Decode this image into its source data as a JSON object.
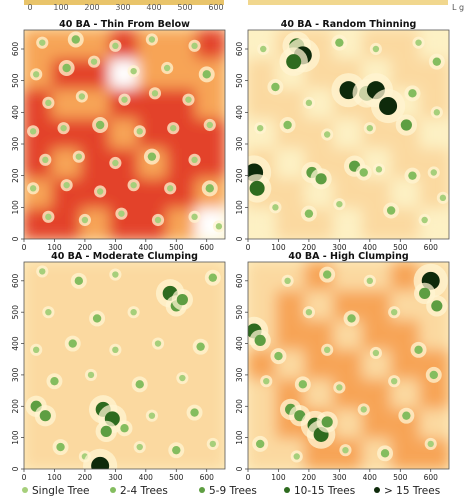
{
  "chart_data": [
    {
      "type": "heatmap",
      "title": "40 BA - Thin From Below",
      "xlim": [
        0,
        660
      ],
      "ylim": [
        0,
        660
      ],
      "x_ticks": [
        0,
        100,
        200,
        300,
        400,
        500,
        600
      ],
      "y_ticks": [
        0,
        100,
        200,
        300,
        400,
        500,
        600
      ],
      "color_scale": [
        "#fdf1c4",
        "#fbd9a0",
        "#f7a457",
        "#e3432a",
        "#ffffff"
      ],
      "crown_density": [
        [
          0.45,
          0.6,
          0.6,
          0.7,
          0.55,
          0.55,
          0.7
        ],
        [
          0.55,
          0.65,
          0.7,
          0.9,
          0.6,
          0.6,
          0.55
        ],
        [
          0.7,
          0.6,
          0.6,
          0.75,
          0.65,
          0.7,
          0.6
        ],
        [
          0.65,
          0.7,
          0.65,
          0.6,
          0.7,
          0.8,
          0.65
        ],
        [
          0.75,
          0.6,
          0.7,
          0.65,
          0.6,
          0.65,
          0.7
        ],
        [
          0.6,
          0.7,
          0.65,
          0.7,
          0.65,
          0.7,
          0.6
        ],
        [
          0.7,
          0.65,
          0.6,
          0.7,
          0.75,
          0.6,
          0.9
        ]
      ],
      "points": [
        {
          "x": 60,
          "y": 620,
          "cls": 1
        },
        {
          "x": 170,
          "y": 630,
          "cls": 2
        },
        {
          "x": 300,
          "y": 610,
          "cls": 1
        },
        {
          "x": 420,
          "y": 630,
          "cls": 1
        },
        {
          "x": 560,
          "y": 610,
          "cls": 1
        },
        {
          "x": 40,
          "y": 520,
          "cls": 1
        },
        {
          "x": 140,
          "y": 540,
          "cls": 2
        },
        {
          "x": 230,
          "y": 560,
          "cls": 1
        },
        {
          "x": 360,
          "y": 530,
          "cls": 1
        },
        {
          "x": 470,
          "y": 540,
          "cls": 1
        },
        {
          "x": 600,
          "y": 520,
          "cls": 2
        },
        {
          "x": 80,
          "y": 430,
          "cls": 1
        },
        {
          "x": 190,
          "y": 450,
          "cls": 1
        },
        {
          "x": 330,
          "y": 440,
          "cls": 1
        },
        {
          "x": 430,
          "y": 460,
          "cls": 1
        },
        {
          "x": 540,
          "y": 440,
          "cls": 1
        },
        {
          "x": 30,
          "y": 340,
          "cls": 1
        },
        {
          "x": 130,
          "y": 350,
          "cls": 1
        },
        {
          "x": 250,
          "y": 360,
          "cls": 2
        },
        {
          "x": 380,
          "y": 340,
          "cls": 1
        },
        {
          "x": 490,
          "y": 350,
          "cls": 1
        },
        {
          "x": 610,
          "y": 360,
          "cls": 1
        },
        {
          "x": 70,
          "y": 250,
          "cls": 1
        },
        {
          "x": 180,
          "y": 260,
          "cls": 1
        },
        {
          "x": 300,
          "y": 240,
          "cls": 1
        },
        {
          "x": 420,
          "y": 260,
          "cls": 2
        },
        {
          "x": 560,
          "y": 250,
          "cls": 1
        },
        {
          "x": 30,
          "y": 160,
          "cls": 1
        },
        {
          "x": 140,
          "y": 170,
          "cls": 1
        },
        {
          "x": 250,
          "y": 150,
          "cls": 1
        },
        {
          "x": 360,
          "y": 170,
          "cls": 1
        },
        {
          "x": 480,
          "y": 160,
          "cls": 1
        },
        {
          "x": 610,
          "y": 160,
          "cls": 2
        },
        {
          "x": 80,
          "y": 70,
          "cls": 1
        },
        {
          "x": 200,
          "y": 60,
          "cls": 1
        },
        {
          "x": 320,
          "y": 80,
          "cls": 1
        },
        {
          "x": 440,
          "y": 60,
          "cls": 1
        },
        {
          "x": 560,
          "y": 70,
          "cls": 1
        },
        {
          "x": 640,
          "y": 40,
          "cls": 1
        }
      ]
    },
    {
      "type": "heatmap",
      "title": "40 BA - Random Thinning",
      "xlim": [
        0,
        660
      ],
      "ylim": [
        0,
        660
      ],
      "x_ticks": [
        0,
        100,
        200,
        300,
        400,
        500,
        600
      ],
      "y_ticks": [
        0,
        100,
        200,
        300,
        400,
        500,
        600
      ],
      "color_scale": [
        "#fdf1c4",
        "#fbd9a0",
        "#f7a457",
        "#e3432a",
        "#ffffff"
      ],
      "crown_density": [
        [
          0.15,
          0.2,
          0.25,
          0.15,
          0.2,
          0.25,
          0.15
        ],
        [
          0.25,
          0.15,
          0.2,
          0.3,
          0.15,
          0.2,
          0.25
        ],
        [
          0.2,
          0.3,
          0.15,
          0.2,
          0.25,
          0.15,
          0.2
        ],
        [
          0.15,
          0.2,
          0.25,
          0.15,
          0.2,
          0.3,
          0.15
        ],
        [
          0.25,
          0.15,
          0.2,
          0.25,
          0.15,
          0.2,
          0.25
        ],
        [
          0.2,
          0.25,
          0.15,
          0.2,
          0.3,
          0.15,
          0.2
        ],
        [
          0.15,
          0.2,
          0.3,
          0.15,
          0.2,
          0.25,
          0.15
        ]
      ],
      "points": [
        {
          "x": 160,
          "y": 610,
          "cls": 4
        },
        {
          "x": 180,
          "y": 580,
          "cls": 5
        },
        {
          "x": 150,
          "y": 560,
          "cls": 4
        },
        {
          "x": 50,
          "y": 600,
          "cls": 1
        },
        {
          "x": 300,
          "y": 620,
          "cls": 2
        },
        {
          "x": 420,
          "y": 600,
          "cls": 1
        },
        {
          "x": 560,
          "y": 620,
          "cls": 1
        },
        {
          "x": 620,
          "y": 560,
          "cls": 2
        },
        {
          "x": 330,
          "y": 470,
          "cls": 5
        },
        {
          "x": 390,
          "y": 460,
          "cls": 4
        },
        {
          "x": 420,
          "y": 470,
          "cls": 5
        },
        {
          "x": 460,
          "y": 420,
          "cls": 5
        },
        {
          "x": 90,
          "y": 480,
          "cls": 2
        },
        {
          "x": 200,
          "y": 430,
          "cls": 1
        },
        {
          "x": 540,
          "y": 460,
          "cls": 2
        },
        {
          "x": 620,
          "y": 400,
          "cls": 1
        },
        {
          "x": 40,
          "y": 350,
          "cls": 1
        },
        {
          "x": 130,
          "y": 360,
          "cls": 2
        },
        {
          "x": 260,
          "y": 330,
          "cls": 1
        },
        {
          "x": 400,
          "y": 350,
          "cls": 1
        },
        {
          "x": 520,
          "y": 360,
          "cls": 3
        },
        {
          "x": 20,
          "y": 210,
          "cls": 5
        },
        {
          "x": 30,
          "y": 160,
          "cls": 4
        },
        {
          "x": 210,
          "y": 210,
          "cls": 3
        },
        {
          "x": 240,
          "y": 190,
          "cls": 3
        },
        {
          "x": 350,
          "y": 230,
          "cls": 3
        },
        {
          "x": 380,
          "y": 210,
          "cls": 2
        },
        {
          "x": 430,
          "y": 220,
          "cls": 1
        },
        {
          "x": 540,
          "y": 200,
          "cls": 2
        },
        {
          "x": 610,
          "y": 210,
          "cls": 1
        },
        {
          "x": 90,
          "y": 100,
          "cls": 1
        },
        {
          "x": 200,
          "y": 80,
          "cls": 2
        },
        {
          "x": 300,
          "y": 110,
          "cls": 1
        },
        {
          "x": 470,
          "y": 90,
          "cls": 2
        },
        {
          "x": 580,
          "y": 60,
          "cls": 1
        },
        {
          "x": 640,
          "y": 130,
          "cls": 1
        }
      ]
    },
    {
      "type": "heatmap",
      "title": "40 BA - Moderate Clumping",
      "xlim": [
        0,
        660
      ],
      "ylim": [
        0,
        660
      ],
      "x_ticks": [
        0,
        100,
        200,
        300,
        400,
        500,
        600
      ],
      "y_ticks": [
        0,
        100,
        200,
        300,
        400,
        500,
        600
      ],
      "color_scale": [
        "#fdf1c4",
        "#fbd9a0",
        "#f7a457",
        "#e3432a",
        "#ffffff"
      ],
      "crown_density": [
        [
          0.2,
          0.3,
          0.25,
          0.35,
          0.25,
          0.3,
          0.2
        ],
        [
          0.3,
          0.25,
          0.35,
          0.3,
          0.4,
          0.25,
          0.3
        ],
        [
          0.25,
          0.35,
          0.3,
          0.25,
          0.35,
          0.3,
          0.25
        ],
        [
          0.3,
          0.25,
          0.35,
          0.3,
          0.25,
          0.35,
          0.3
        ],
        [
          0.25,
          0.3,
          0.25,
          0.35,
          0.3,
          0.25,
          0.3
        ],
        [
          0.3,
          0.35,
          0.3,
          0.25,
          0.3,
          0.35,
          0.25
        ],
        [
          0.25,
          0.3,
          0.35,
          0.3,
          0.25,
          0.3,
          0.35
        ]
      ],
      "points": [
        {
          "x": 480,
          "y": 560,
          "cls": 4
        },
        {
          "x": 500,
          "y": 520,
          "cls": 3
        },
        {
          "x": 520,
          "y": 540,
          "cls": 3
        },
        {
          "x": 60,
          "y": 630,
          "cls": 1
        },
        {
          "x": 180,
          "y": 600,
          "cls": 2
        },
        {
          "x": 300,
          "y": 620,
          "cls": 1
        },
        {
          "x": 620,
          "y": 610,
          "cls": 2
        },
        {
          "x": 80,
          "y": 500,
          "cls": 1
        },
        {
          "x": 240,
          "y": 480,
          "cls": 2
        },
        {
          "x": 360,
          "y": 500,
          "cls": 1
        },
        {
          "x": 40,
          "y": 380,
          "cls": 1
        },
        {
          "x": 160,
          "y": 400,
          "cls": 2
        },
        {
          "x": 300,
          "y": 380,
          "cls": 1
        },
        {
          "x": 440,
          "y": 400,
          "cls": 1
        },
        {
          "x": 580,
          "y": 390,
          "cls": 2
        },
        {
          "x": 100,
          "y": 280,
          "cls": 2
        },
        {
          "x": 220,
          "y": 300,
          "cls": 1
        },
        {
          "x": 380,
          "y": 270,
          "cls": 2
        },
        {
          "x": 520,
          "y": 290,
          "cls": 1
        },
        {
          "x": 40,
          "y": 200,
          "cls": 3
        },
        {
          "x": 70,
          "y": 170,
          "cls": 3
        },
        {
          "x": 260,
          "y": 190,
          "cls": 4
        },
        {
          "x": 290,
          "y": 160,
          "cls": 4
        },
        {
          "x": 270,
          "y": 120,
          "cls": 3
        },
        {
          "x": 330,
          "y": 130,
          "cls": 2
        },
        {
          "x": 420,
          "y": 170,
          "cls": 1
        },
        {
          "x": 560,
          "y": 180,
          "cls": 2
        },
        {
          "x": 120,
          "y": 70,
          "cls": 2
        },
        {
          "x": 200,
          "y": 40,
          "cls": 1
        },
        {
          "x": 250,
          "y": 10,
          "cls": 5
        },
        {
          "x": 380,
          "y": 70,
          "cls": 1
        },
        {
          "x": 500,
          "y": 60,
          "cls": 2
        },
        {
          "x": 620,
          "y": 80,
          "cls": 1
        }
      ]
    },
    {
      "type": "heatmap",
      "title": "40 BA - High Clumping",
      "xlim": [
        0,
        660
      ],
      "ylim": [
        0,
        660
      ],
      "x_ticks": [
        0,
        100,
        200,
        300,
        400,
        500,
        600
      ],
      "y_ticks": [
        0,
        100,
        200,
        300,
        400,
        500,
        600
      ],
      "color_scale": [
        "#fdf1c4",
        "#fbd9a0",
        "#f7a457",
        "#e3432a",
        "#ffffff"
      ],
      "crown_density": [
        [
          0.25,
          0.35,
          0.55,
          0.4,
          0.3,
          0.45,
          0.35
        ],
        [
          0.35,
          0.45,
          0.4,
          0.55,
          0.45,
          0.35,
          0.4
        ],
        [
          0.4,
          0.5,
          0.45,
          0.4,
          0.5,
          0.55,
          0.35
        ],
        [
          0.45,
          0.35,
          0.55,
          0.45,
          0.4,
          0.45,
          0.5
        ],
        [
          0.35,
          0.45,
          0.4,
          0.5,
          0.45,
          0.4,
          0.45
        ],
        [
          0.4,
          0.55,
          0.45,
          0.4,
          0.55,
          0.45,
          0.4
        ],
        [
          0.3,
          0.4,
          0.5,
          0.45,
          0.4,
          0.6,
          0.45
        ]
      ],
      "points": [
        {
          "x": 600,
          "y": 600,
          "cls": 5
        },
        {
          "x": 580,
          "y": 560,
          "cls": 3
        },
        {
          "x": 620,
          "y": 520,
          "cls": 3
        },
        {
          "x": 20,
          "y": 440,
          "cls": 4
        },
        {
          "x": 40,
          "y": 410,
          "cls": 3
        },
        {
          "x": 130,
          "y": 600,
          "cls": 1
        },
        {
          "x": 260,
          "y": 620,
          "cls": 2
        },
        {
          "x": 400,
          "y": 600,
          "cls": 1
        },
        {
          "x": 200,
          "y": 500,
          "cls": 1
        },
        {
          "x": 340,
          "y": 480,
          "cls": 2
        },
        {
          "x": 480,
          "y": 500,
          "cls": 1
        },
        {
          "x": 100,
          "y": 360,
          "cls": 2
        },
        {
          "x": 260,
          "y": 380,
          "cls": 1
        },
        {
          "x": 420,
          "y": 370,
          "cls": 1
        },
        {
          "x": 560,
          "y": 380,
          "cls": 2
        },
        {
          "x": 60,
          "y": 280,
          "cls": 1
        },
        {
          "x": 180,
          "y": 270,
          "cls": 2
        },
        {
          "x": 300,
          "y": 260,
          "cls": 1
        },
        {
          "x": 480,
          "y": 280,
          "cls": 1
        },
        {
          "x": 610,
          "y": 300,
          "cls": 2
        },
        {
          "x": 140,
          "y": 190,
          "cls": 3
        },
        {
          "x": 170,
          "y": 170,
          "cls": 3
        },
        {
          "x": 220,
          "y": 140,
          "cls": 4
        },
        {
          "x": 240,
          "y": 110,
          "cls": 4
        },
        {
          "x": 260,
          "y": 150,
          "cls": 3
        },
        {
          "x": 380,
          "y": 190,
          "cls": 1
        },
        {
          "x": 520,
          "y": 170,
          "cls": 2
        },
        {
          "x": 40,
          "y": 80,
          "cls": 2
        },
        {
          "x": 160,
          "y": 40,
          "cls": 1
        },
        {
          "x": 320,
          "y": 60,
          "cls": 1
        },
        {
          "x": 450,
          "y": 50,
          "cls": 2
        },
        {
          "x": 600,
          "y": 80,
          "cls": 1
        }
      ]
    }
  ],
  "legend": {
    "items": [
      {
        "label": "Single Tree",
        "color": "#a6cf7b"
      },
      {
        "label": "2-4 Trees",
        "color": "#84bd5f"
      },
      {
        "label": "5-9 Trees",
        "color": "#5e9e42"
      },
      {
        "label": "10-15 Trees",
        "color": "#2e6b1f"
      },
      {
        "label": "> 15 Trees",
        "color": "#0e2a0b"
      }
    ]
  },
  "top_fragment": {
    "ticks": [
      "0",
      "100",
      "200",
      "300",
      "400",
      "500",
      "600"
    ],
    "side_text": "L g"
  }
}
